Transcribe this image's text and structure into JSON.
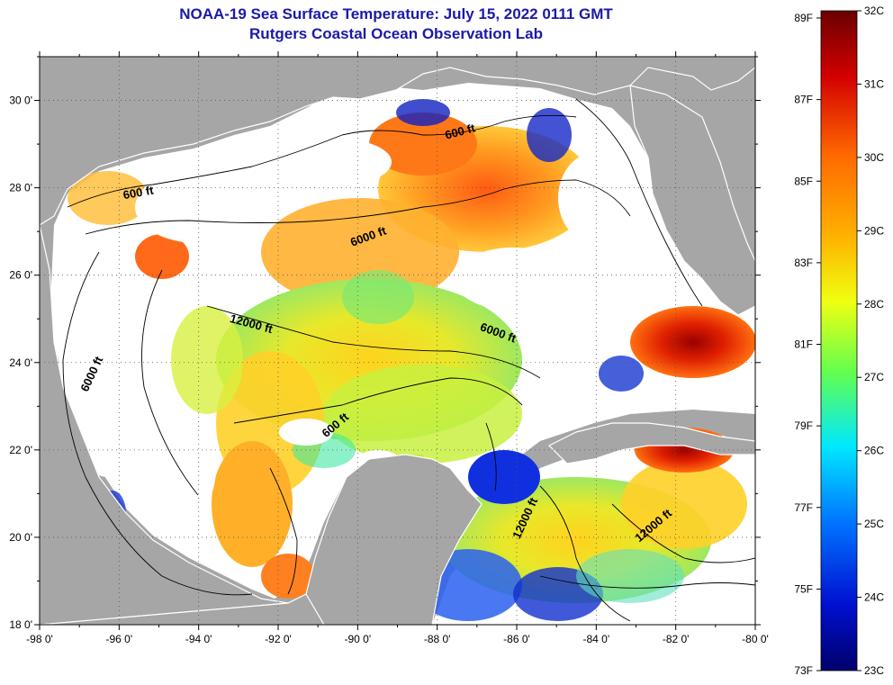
{
  "title": {
    "line1": "NOAA-19 Sea Surface Temperature:  July 15, 2022 0111 GMT",
    "line2": "Rutgers Coastal Ocean Observation Lab"
  },
  "map": {
    "lon_ticks": [
      "-98 0'",
      "-96 0'",
      "-94 0'",
      "-92 0'",
      "-90 0'",
      "-88 0'",
      "-86 0'",
      "-84 0'",
      "-82 0'",
      "-80 0'"
    ],
    "lat_ticks": [
      "30 0'",
      "28 0'",
      "26 0'",
      "24 0'",
      "22 0'",
      "20 0'",
      "18 0'"
    ],
    "lon_range": [
      -98,
      -80
    ],
    "lat_range": [
      18,
      31
    ],
    "contour_labels": [
      {
        "text": "600 ft",
        "lon": -95.5,
        "lat": 27.8,
        "angle": -10
      },
      {
        "text": "600 ft",
        "lon": -87.4,
        "lat": 29.2,
        "angle": -15
      },
      {
        "text": "6000 ft",
        "lon": -89.7,
        "lat": 26.8,
        "angle": -20
      },
      {
        "text": "12000 ft",
        "lon": -92.7,
        "lat": 24.8,
        "angle": 15
      },
      {
        "text": "6000 ft",
        "lon": -86.5,
        "lat": 24.6,
        "angle": 20
      },
      {
        "text": "6000 ft",
        "lon": -96.6,
        "lat": 23.7,
        "angle": -65
      },
      {
        "text": "600 ft",
        "lon": -90.5,
        "lat": 22.5,
        "angle": -40
      },
      {
        "text": "12000 ft",
        "lon": -85.7,
        "lat": 20.4,
        "angle": -65
      },
      {
        "text": "12000 ft",
        "lon": -82.5,
        "lat": 20.2,
        "angle": -40
      }
    ]
  },
  "colorbar": {
    "f_labels": [
      "89F",
      "87F",
      "85F",
      "83F",
      "81F",
      "79F",
      "77F",
      "75F",
      "73F"
    ],
    "c_labels": [
      "32C",
      "31C",
      "30C",
      "29C",
      "28C",
      "27C",
      "26C",
      "25C",
      "24C",
      "23C"
    ],
    "colors": [
      "#6a0000",
      "#d40000",
      "#ff6a00",
      "#ffd000",
      "#f0ff10",
      "#50ff50",
      "#00e0ff",
      "#0070ff",
      "#0010d0",
      "#000080"
    ]
  }
}
